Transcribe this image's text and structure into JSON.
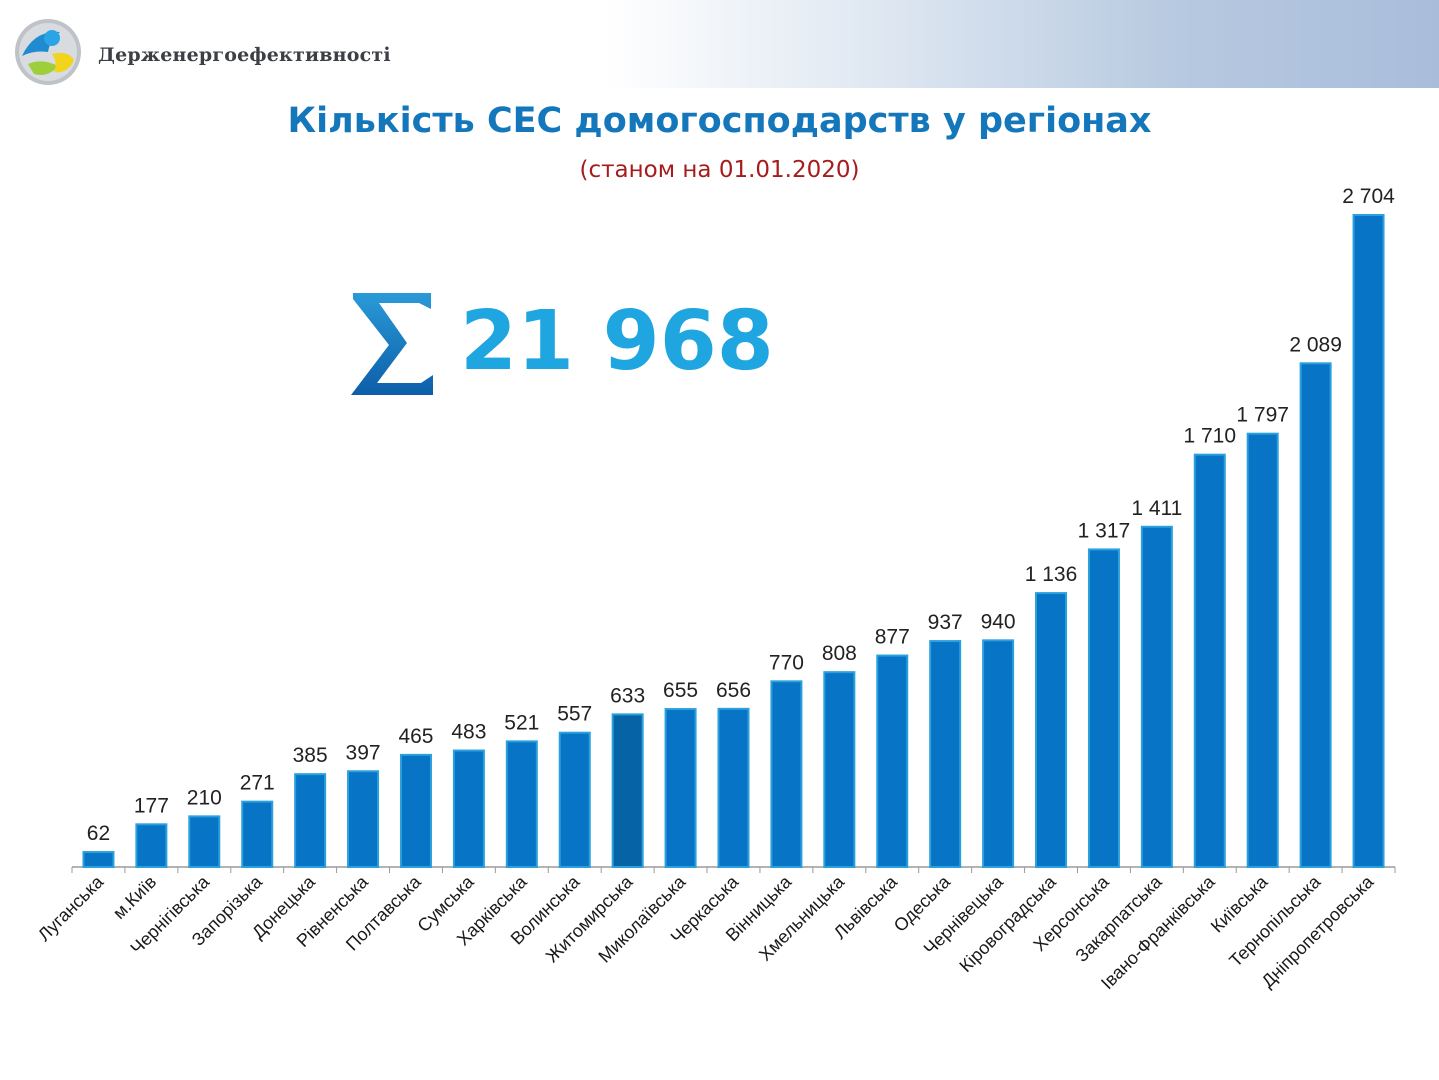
{
  "header": {
    "brand": "Держенергоефективності"
  },
  "title": "Кількість СЕС домогосподарств у регіонах",
  "subtitle": "(станом на 01.01.2020)",
  "total": {
    "icon": "sigma-icon",
    "value": "21 968"
  },
  "colors": {
    "bar": "#0874c6",
    "bar_dark": "#0663a6",
    "bar_edge": "#2aa0dd",
    "title": "#1577bb",
    "subtitle": "#a61c1c",
    "total": "#1fa6e0"
  },
  "chart_data": {
    "type": "bar",
    "title": "Кількість СЕС домогосподарств у регіонах",
    "subtitle": "(станом на 01.01.2020)",
    "categories": [
      "Луганська",
      "м.Київ",
      "Чернігівська",
      "Запорізька",
      "Донецька",
      "Рівненська",
      "Полтавська",
      "Сумська",
      "Харківська",
      "Волинська",
      "Житомирська",
      "Миколаївська",
      "Черкаська",
      "Вінницька",
      "Хмельницька",
      "Львівська",
      "Одеська",
      "Чернівецька",
      "Кіровоградська",
      "Херсонська",
      "Закарпатська",
      "Івано-Франківська",
      "Київська",
      "Тернопільська",
      "Дніпропетровська"
    ],
    "values": [
      62,
      177,
      210,
      271,
      385,
      397,
      465,
      483,
      521,
      557,
      633,
      655,
      656,
      770,
      808,
      877,
      937,
      940,
      1136,
      1317,
      1411,
      1710,
      1797,
      2089,
      2704
    ],
    "value_labels": [
      "62",
      "177",
      "210",
      "271",
      "385",
      "397",
      "465",
      "483",
      "521",
      "557",
      "633",
      "655",
      "656",
      "770",
      "808",
      "877",
      "937",
      "940",
      "1 136",
      "1 317",
      "1 411",
      "1 710",
      "1 797",
      "2 089",
      "2 704"
    ],
    "highlighted_index": 10,
    "ylim": [
      0,
      2704
    ],
    "grid": false,
    "legend": "none",
    "xlabel": "",
    "ylabel": ""
  }
}
